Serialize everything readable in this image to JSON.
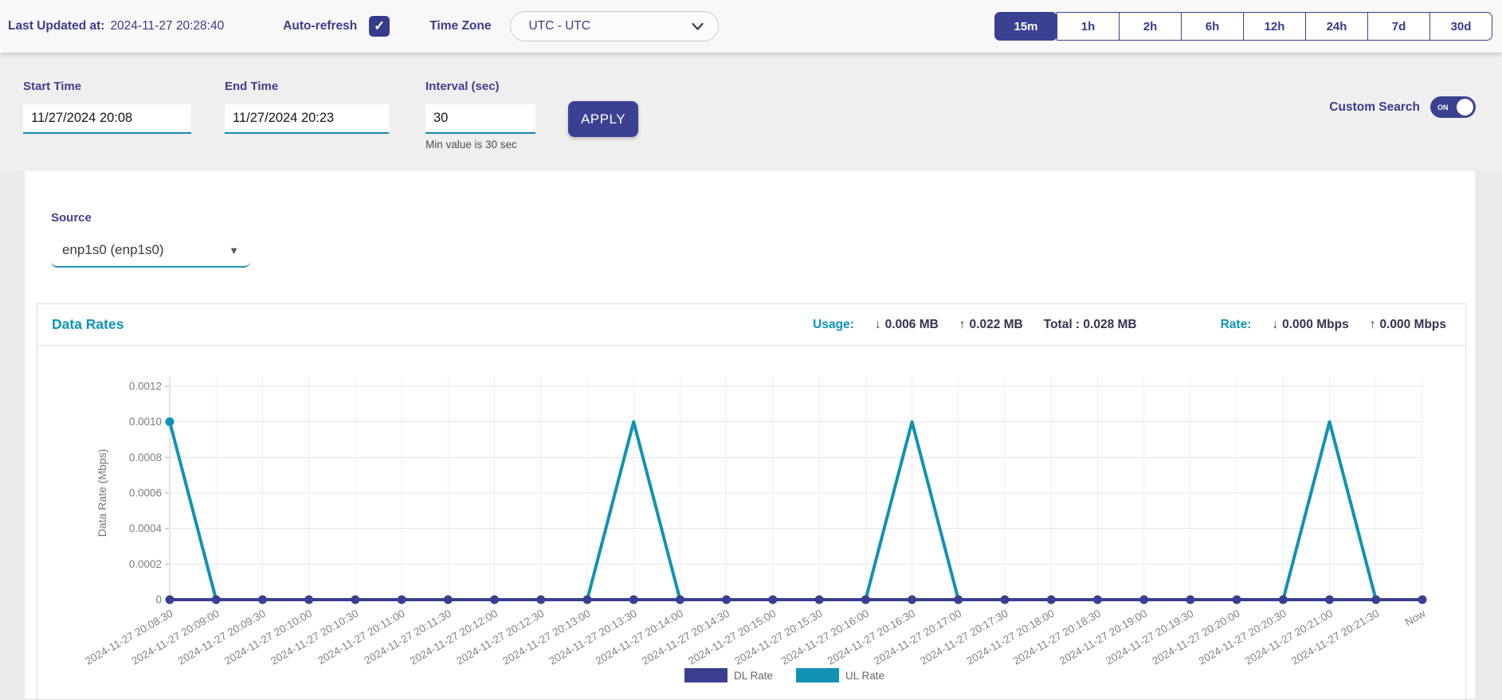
{
  "icons": {
    "check": "✓",
    "arrow_down": "↓",
    "arrow_up": "↑",
    "dropdown_triangle": "▼"
  },
  "topbar": {
    "last_updated_label": "Last Updated at:",
    "last_updated_value": "2024-11-27 20:28:40",
    "auto_refresh_label": "Auto-refresh",
    "auto_refresh_checked": true,
    "timezone_label": "Time Zone",
    "timezone_value": "UTC - UTC",
    "range_buttons": [
      "15m",
      "1h",
      "2h",
      "6h",
      "12h",
      "24h",
      "7d",
      "30d"
    ],
    "range_selected": "15m"
  },
  "filters": {
    "start_time": {
      "label": "Start Time",
      "value": "11/27/2024 20:08"
    },
    "end_time": {
      "label": "End Time",
      "value": "11/27/2024 20:23"
    },
    "interval": {
      "label": "Interval (sec)",
      "value": "30",
      "hint": "Min value is 30 sec"
    },
    "apply_label": "APPLY",
    "custom_search_label": "Custom Search",
    "custom_search_state": "ON"
  },
  "source": {
    "label": "Source",
    "value": "enp1s0 (enp1s0)"
  },
  "panel": {
    "title": "Data Rates",
    "usage_label": "Usage:",
    "usage_down": "0.006 MB",
    "usage_up": "0.022 MB",
    "usage_total": "Total : 0.028 MB",
    "rate_label": "Rate:",
    "rate_down": "0.000 Mbps",
    "rate_up": "0.000 Mbps"
  },
  "colors": {
    "navy": "#3b4191",
    "dl_line": "#3b3f92",
    "ul_line": "#1092b6",
    "teal_accent": "#0e94b8",
    "grid": "#e5e5e5",
    "vgrid": "#ececec",
    "axis": "#c9c9c9",
    "tick": "#aaaaaa"
  },
  "chart_data": {
    "type": "line",
    "title": "Data Rates",
    "xlabel": "",
    "ylabel": "Data Rate (Mbps)",
    "ylim": [
      0,
      0.0012
    ],
    "grid": true,
    "legend_position": "bottom",
    "yticks": [
      0,
      0.0002,
      0.0004,
      0.0006,
      0.0008,
      0.001,
      0.0012
    ],
    "ytick_labels": [
      "0",
      "0.0002",
      "0.0004",
      "0.0006",
      "0.0008",
      "0.0010",
      "0.0012"
    ],
    "categories": [
      "2024-11-27 20:08:30",
      "2024-11-27 20:09:00",
      "2024-11-27 20:09:30",
      "2024-11-27 20:10:00",
      "2024-11-27 20:10:30",
      "2024-11-27 20:11:00",
      "2024-11-27 20:11:30",
      "2024-11-27 20:12:00",
      "2024-11-27 20:12:30",
      "2024-11-27 20:13:00",
      "2024-11-27 20:13:30",
      "2024-11-27 20:14:00",
      "2024-11-27 20:14:30",
      "2024-11-27 20:15:00",
      "2024-11-27 20:15:30",
      "2024-11-27 20:16:00",
      "2024-11-27 20:16:30",
      "2024-11-27 20:17:00",
      "2024-11-27 20:17:30",
      "2024-11-27 20:18:00",
      "2024-11-27 20:18:30",
      "2024-11-27 20:19:00",
      "2024-11-27 20:19:30",
      "2024-11-27 20:20:00",
      "2024-11-27 20:20:30",
      "2024-11-27 20:21:00",
      "2024-11-27 20:21:30",
      "Now"
    ],
    "series": [
      {
        "name": "UL Rate",
        "color": "#1092b6",
        "marker_mode": "first",
        "values": [
          0.001,
          0,
          0,
          0,
          0,
          0,
          0,
          0,
          0,
          0,
          0.001,
          0,
          0,
          0,
          0,
          0,
          0.001,
          0,
          0,
          0,
          0,
          0,
          0,
          0,
          0,
          0.001,
          0,
          0
        ]
      },
      {
        "name": "DL Rate",
        "color": "#3b3f92",
        "marker_mode": "all",
        "values": [
          0,
          0,
          0,
          0,
          0,
          0,
          0,
          0,
          0,
          0,
          0,
          0,
          0,
          0,
          0,
          0,
          0,
          0,
          0,
          0,
          0,
          0,
          0,
          0,
          0,
          0,
          0,
          0
        ]
      }
    ],
    "legend_order": [
      "DL Rate",
      "UL Rate"
    ]
  }
}
